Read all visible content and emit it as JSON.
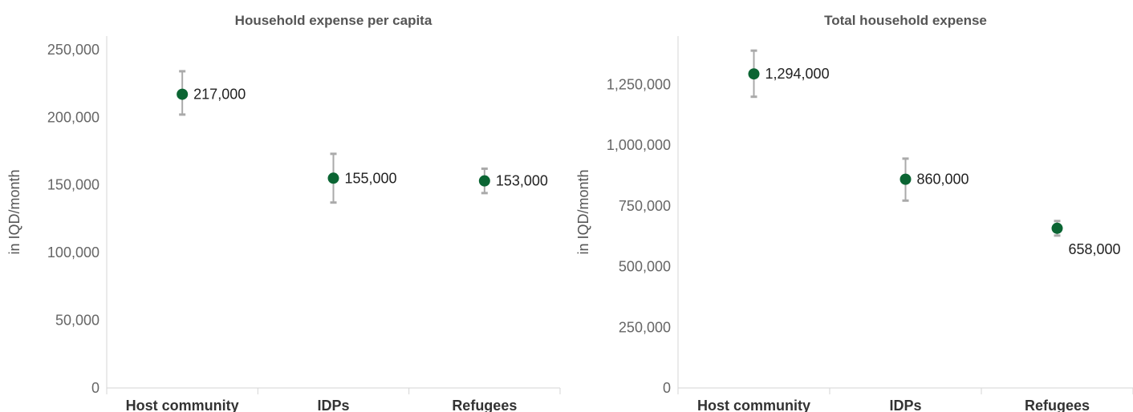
{
  "colors": {
    "point": "#0b6533",
    "error_bar": "#aaaaaa",
    "axis": "#d6d6d6"
  },
  "chart_data": [
    {
      "type": "scatter",
      "title": "Household expense per capita",
      "ylabel": "in IQD/month",
      "xlabel": "",
      "categories": [
        "Host community",
        "IDPs",
        "Refugees"
      ],
      "values": [
        217000,
        155000,
        153000
      ],
      "error_low": [
        202000,
        137000,
        144000
      ],
      "error_high": [
        234000,
        173000,
        162000
      ],
      "data_labels": [
        "217,000",
        "155,000",
        "153,000"
      ],
      "ylim": [
        0,
        260000
      ],
      "yticks": [
        0,
        50000,
        100000,
        150000,
        200000,
        250000
      ],
      "ytick_labels": [
        "0",
        "50,000",
        "100,000",
        "150,000",
        "200,000",
        "250,000"
      ],
      "grid": false,
      "legend": "none"
    },
    {
      "type": "scatter",
      "title": "Total household expense",
      "ylabel": "in IQD/month",
      "xlabel": "",
      "categories": [
        "Host community",
        "IDPs",
        "Refugees"
      ],
      "values": [
        1294000,
        860000,
        658000
      ],
      "error_low": [
        1200000,
        772000,
        628000
      ],
      "error_high": [
        1390000,
        945000,
        688000
      ],
      "data_labels": [
        "1,294,000",
        "860,000",
        "658,000"
      ],
      "ylim": [
        0,
        1450000
      ],
      "yticks": [
        0,
        250000,
        500000,
        750000,
        1000000,
        1250000
      ],
      "ytick_labels": [
        "0",
        "250,000",
        "500,000",
        "750,000",
        "1,000,000",
        "1,250,000"
      ],
      "grid": false,
      "legend": "none"
    }
  ]
}
